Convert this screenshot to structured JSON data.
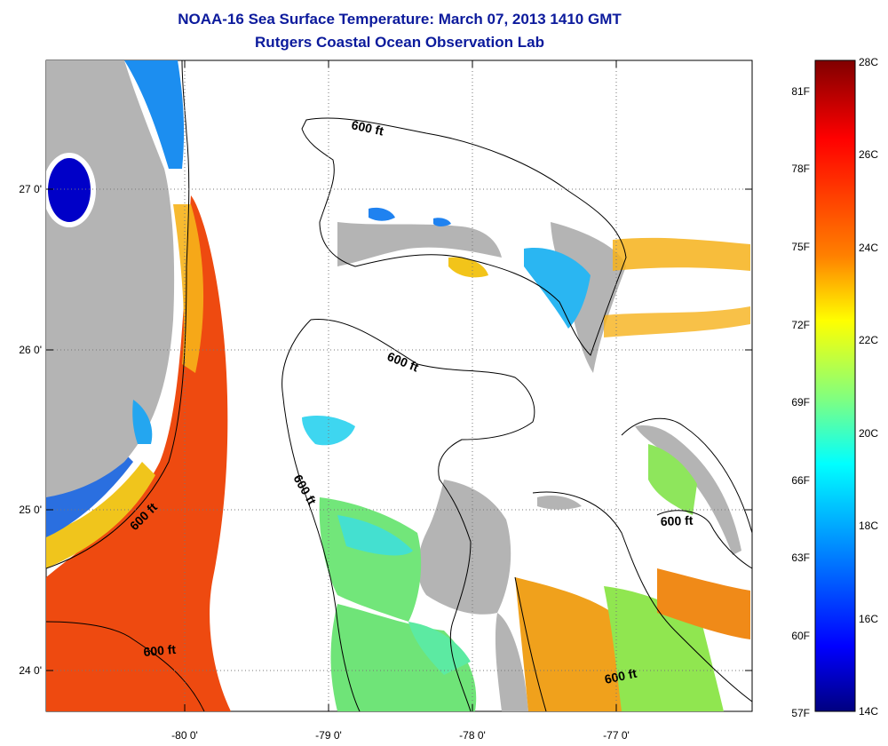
{
  "title": {
    "line1": "NOAA-16 Sea Surface Temperature:  March 07, 2013 1410 GMT",
    "line2": "Rutgers Coastal Ocean Observation Lab"
  },
  "axes": {
    "latitude_ticks": [
      "27 0'",
      "26 0'",
      "25 0'",
      "24 0'"
    ],
    "longitude_ticks": [
      "-80 0'",
      "-79 0'",
      "-78 0'",
      "-77 0'"
    ]
  },
  "contour": {
    "label": "600 ft",
    "label_count": 7
  },
  "colorbar": {
    "celsius": [
      "28C",
      "26C",
      "24C",
      "22C",
      "20C",
      "18C",
      "16C",
      "14C"
    ],
    "fahrenheit": [
      "81F",
      "78F",
      "75F",
      "72F",
      "69F",
      "66F",
      "63F",
      "60F",
      "57F"
    ],
    "colors": [
      "#800000",
      "#ff0000",
      "#ff8000",
      "#ffff00",
      "#80ff80",
      "#00ffff",
      "#0080ff",
      "#0000ff",
      "#000080"
    ]
  },
  "palette": {
    "land": "#b4b4b4",
    "no_data": "#ffffff",
    "title": "#0b1a9c"
  }
}
